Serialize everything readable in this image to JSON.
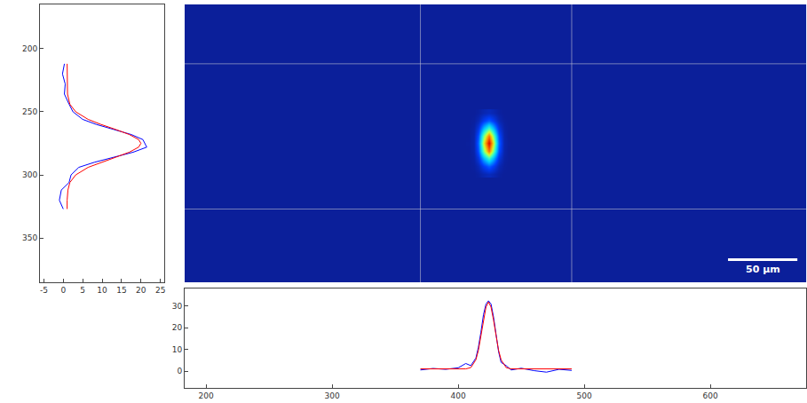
{
  "chart_data": [
    {
      "type": "heatmap",
      "x": [
        408,
        412,
        416,
        420,
        424,
        428,
        432,
        436,
        440
      ],
      "y": [
        251,
        257,
        263,
        269,
        275,
        281,
        287,
        293,
        299
      ],
      "cells": [
        [
          0,
          0,
          0.3,
          1.1,
          1.6,
          1.1,
          0.3,
          0,
          0
        ],
        [
          0,
          0.2,
          1.3,
          4.3,
          6.4,
          4.3,
          1.3,
          0.2,
          0
        ],
        [
          0,
          0.5,
          3.3,
          10.5,
          15.7,
          10.5,
          3.3,
          0.5,
          0
        ],
        [
          0,
          0.8,
          5.6,
          18,
          26.9,
          18,
          5.6,
          0.8,
          0
        ],
        [
          0.1,
          0.9,
          6.7,
          21.4,
          32,
          21.4,
          6.7,
          0.9,
          0.1
        ],
        [
          0,
          0.8,
          5.6,
          18,
          26.9,
          18,
          5.6,
          0.8,
          0
        ],
        [
          0,
          0.5,
          3.3,
          10.5,
          15.7,
          10.5,
          3.3,
          0.5,
          0
        ],
        [
          0,
          0.2,
          1.3,
          4.3,
          6.4,
          4.3,
          1.3,
          0.2,
          0
        ],
        [
          0,
          0,
          0.3,
          1.1,
          1.6,
          1.1,
          0.3,
          0,
          0
        ]
      ],
      "zlim": [
        0,
        32
      ],
      "xlim": [
        183,
        676
      ],
      "ylim": [
        385,
        165
      ],
      "tick_labels": false,
      "grid": false,
      "roi": {
        "x": [
          370,
          490
        ],
        "y": [
          212,
          327
        ]
      },
      "scale_bar": {
        "label": "50 μm",
        "x": [
          614,
          669
        ],
        "y": 367
      }
    },
    {
      "type": "line",
      "orientation": "horizontal",
      "y": [
        212,
        220,
        228,
        236,
        244,
        250,
        256,
        260,
        264,
        268,
        272,
        275,
        278,
        282,
        286,
        290,
        294,
        300,
        306,
        312,
        320,
        327
      ],
      "series": [
        {
          "color": "#0000ff",
          "values": [
            0.3,
            -0.2,
            0.5,
            0.3,
            1.5,
            2.5,
            5,
            8.5,
            13,
            17.5,
            20.5,
            21,
            21.5,
            18,
            13,
            8,
            4,
            2,
            1.5,
            -0.5,
            -1,
            0
          ]
        },
        {
          "color": "#ff0000",
          "values": [
            1,
            1,
            1,
            1.1,
            1.7,
            3.2,
            6.4,
            9.7,
            13.5,
            17,
            19.4,
            20,
            19.4,
            17,
            13.5,
            9.7,
            6.4,
            3.2,
            1.7,
            1.2,
            1,
            1
          ]
        }
      ],
      "xlim": [
        -6,
        26
      ],
      "xticks": [
        -5,
        0,
        5,
        10,
        15,
        20,
        25
      ],
      "ylim": [
        385,
        165
      ],
      "yticks": [
        200,
        250,
        300,
        350
      ],
      "grid": false
    },
    {
      "type": "line",
      "x": [
        370,
        380,
        390,
        400,
        406,
        410,
        414,
        416,
        418,
        420,
        422,
        424,
        426,
        428,
        430,
        432,
        434,
        438,
        442,
        450,
        460,
        470,
        480,
        490
      ],
      "series": [
        {
          "color": "#0000ff",
          "values": [
            0.5,
            1.2,
            0.8,
            1.5,
            3.5,
            2.5,
            6,
            11,
            18,
            26,
            31,
            32.5,
            31,
            25,
            17,
            9,
            4,
            2.5,
            0.5,
            1.3,
            0.2,
            -0.5,
            0.8,
            0.3
          ]
        },
        {
          "color": "#ff0000",
          "values": [
            1,
            1,
            1,
            1,
            1,
            1.6,
            5.2,
            9.6,
            16.1,
            23.6,
            29.6,
            32,
            29.6,
            23.6,
            16.1,
            9.6,
            5.2,
            1.6,
            1,
            1,
            1,
            1,
            1,
            1
          ]
        }
      ],
      "xlim": [
        183,
        676
      ],
      "xticks": [
        200,
        300,
        400,
        500,
        600
      ],
      "ylim": [
        -7.8,
        38.2
      ],
      "yticks": [
        0,
        10,
        20,
        30
      ],
      "grid": false
    }
  ]
}
